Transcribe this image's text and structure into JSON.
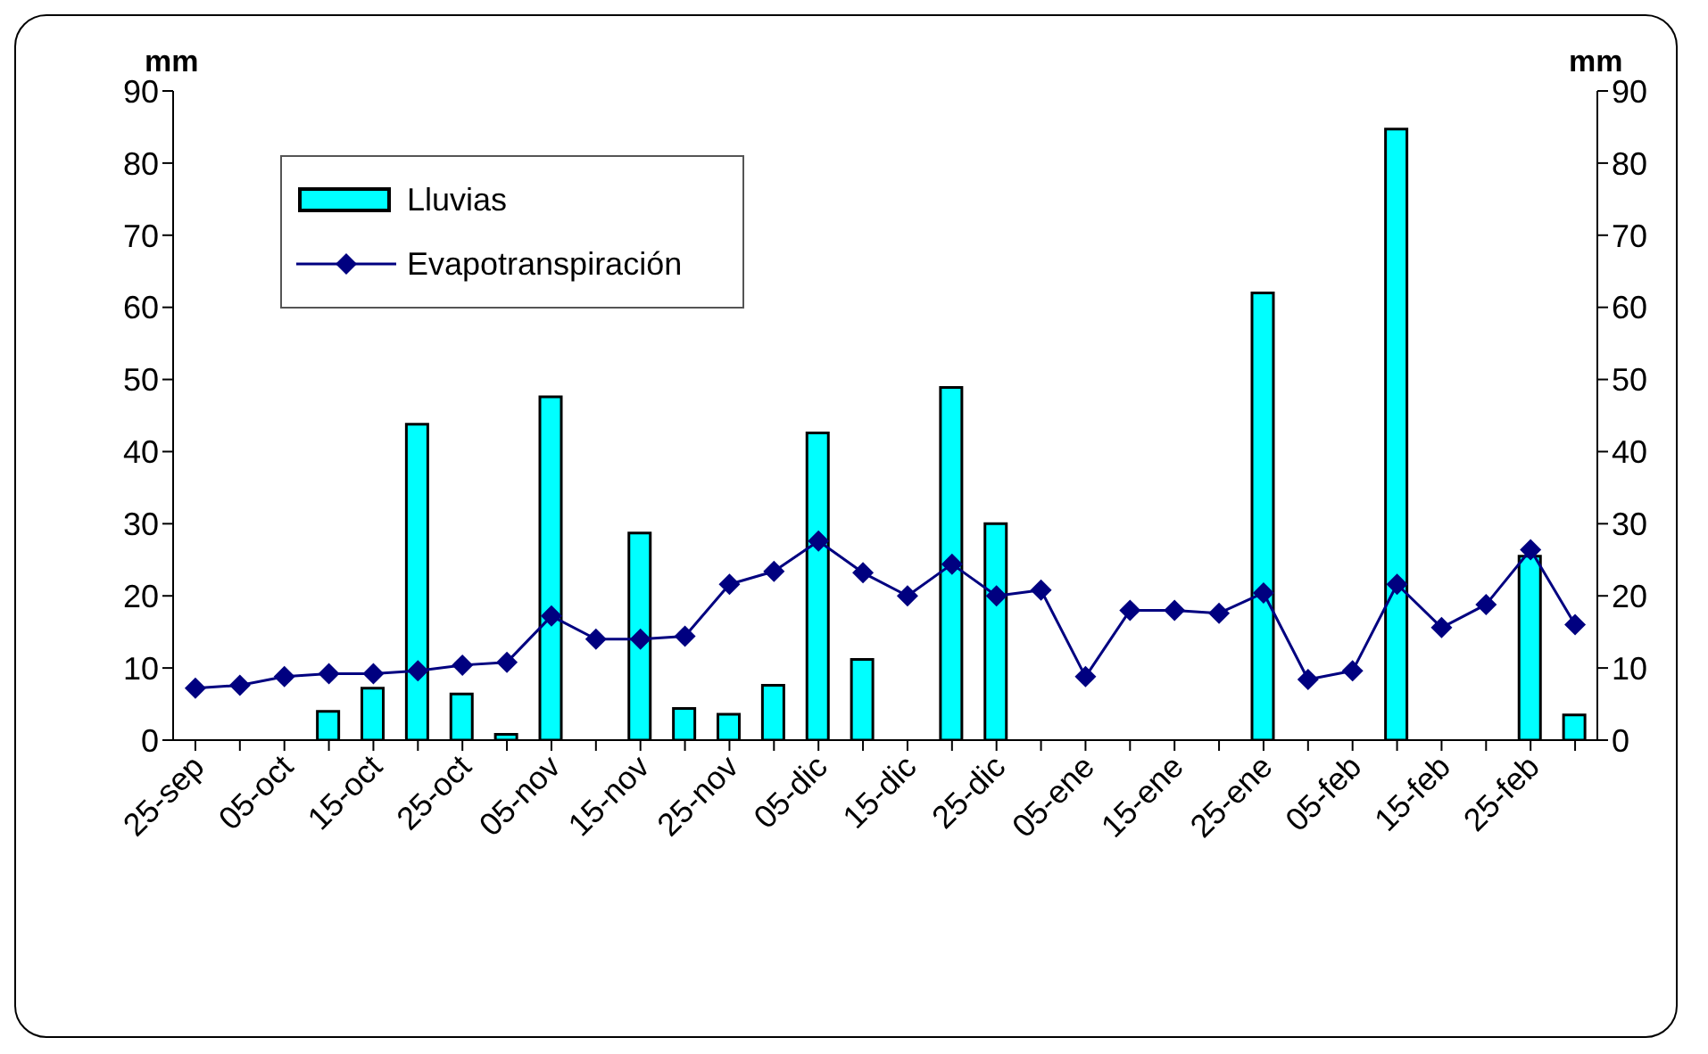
{
  "chart_data": {
    "type": "bar",
    "ylabel": "mm",
    "y2label": "mm",
    "categories": [
      "25-sep",
      null,
      "05-oct",
      null,
      "15-oct",
      null,
      "25-oct",
      null,
      "05-nov",
      null,
      "15-nov",
      null,
      "25-nov",
      null,
      "05-dic",
      null,
      "15-dic",
      null,
      "25-dic",
      null,
      "05-ene",
      null,
      "15-ene",
      null,
      "25-ene",
      null,
      "05-feb",
      null,
      "15-feb",
      null,
      "25-feb",
      null
    ],
    "series": [
      {
        "name": "Lluvias",
        "color": "#00ffff",
        "values": [
          null,
          null,
          null,
          4.0,
          7.2,
          43.8,
          6.4,
          0.8,
          47.6,
          null,
          28.7,
          4.4,
          3.6,
          7.6,
          42.6,
          11.2,
          null,
          48.9,
          30.0,
          null,
          null,
          null,
          null,
          null,
          62.0,
          null,
          null,
          84.7,
          null,
          null,
          25.5,
          3.5
        ]
      },
      {
        "name": "Evapotranspiración",
        "type": "line",
        "color": "#000080",
        "marker": "diamond",
        "values": [
          7.2,
          7.6,
          8.8,
          9.2,
          9.2,
          9.6,
          10.4,
          10.8,
          17.2,
          14.0,
          14.0,
          14.4,
          21.6,
          23.4,
          27.6,
          23.2,
          20.0,
          24.4,
          20.0,
          20.8,
          8.8,
          18.0,
          18.0,
          17.6,
          20.4,
          8.4,
          9.6,
          21.6,
          15.6,
          18.8,
          26.4,
          16.0
        ]
      }
    ],
    "ylim": [
      0,
      90
    ],
    "yticks": [
      0,
      10,
      20,
      30,
      40,
      50,
      60,
      70,
      80,
      90
    ],
    "y2lim": [
      0,
      90
    ],
    "y2ticks": [
      0,
      10,
      20,
      30,
      40,
      50,
      60,
      70,
      80,
      90
    ],
    "grid": false,
    "legend": "top left"
  }
}
